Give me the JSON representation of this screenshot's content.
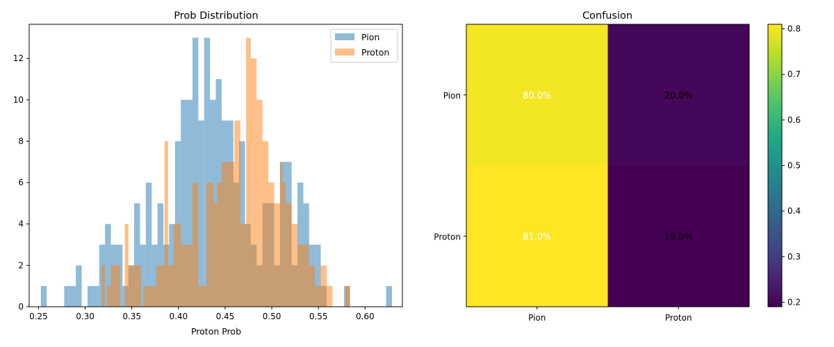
{
  "chart_data": [
    {
      "type": "bar",
      "subtype": "histogram",
      "title": "Prob Distribution",
      "xlabel": "Proton Prob",
      "ylabel": "",
      "xlim": [
        0.24,
        0.64
      ],
      "ylim": [
        0,
        13.65
      ],
      "xticks": [
        "0.25",
        "0.30",
        "0.35",
        "0.40",
        "0.45",
        "0.50",
        "0.55",
        "0.60"
      ],
      "yticks": [
        "0",
        "2",
        "4",
        "6",
        "8",
        "10",
        "12"
      ],
      "legend": {
        "placement": "upper-right"
      },
      "series": [
        {
          "name": "Pion",
          "color": "#1f77b4",
          "alpha": 0.5,
          "bins": [
            [
              0.2525,
              0.2588,
              1
            ],
            [
              0.2775,
              0.2838,
              1
            ],
            [
              0.2838,
              0.29,
              1
            ],
            [
              0.29,
              0.2963,
              2
            ],
            [
              0.2963,
              0.3025,
              0
            ],
            [
              0.3025,
              0.3088,
              1
            ],
            [
              0.3088,
              0.315,
              1
            ],
            [
              0.315,
              0.3213,
              3
            ],
            [
              0.3213,
              0.3275,
              4
            ],
            [
              0.3275,
              0.3338,
              3
            ],
            [
              0.3338,
              0.34,
              3
            ],
            [
              0.34,
              0.3463,
              1
            ],
            [
              0.3463,
              0.3525,
              2
            ],
            [
              0.3525,
              0.3588,
              5
            ],
            [
              0.3588,
              0.365,
              3
            ],
            [
              0.365,
              0.3713,
              6
            ],
            [
              0.3713,
              0.3775,
              3
            ],
            [
              0.3775,
              0.3838,
              5
            ],
            [
              0.3838,
              0.39,
              3
            ],
            [
              0.39,
              0.3963,
              4
            ],
            [
              0.3963,
              0.4025,
              8
            ],
            [
              0.4025,
              0.4088,
              10
            ],
            [
              0.4088,
              0.415,
              10
            ],
            [
              0.415,
              0.4213,
              13
            ],
            [
              0.4213,
              0.4275,
              9
            ],
            [
              0.4275,
              0.4338,
              13
            ],
            [
              0.4338,
              0.44,
              10
            ],
            [
              0.44,
              0.4463,
              11
            ],
            [
              0.4463,
              0.4525,
              9
            ],
            [
              0.4525,
              0.4588,
              9
            ],
            [
              0.4588,
              0.465,
              6
            ],
            [
              0.465,
              0.4713,
              8
            ],
            [
              0.4713,
              0.4775,
              4
            ],
            [
              0.4775,
              0.4838,
              3
            ],
            [
              0.4838,
              0.49,
              2
            ],
            [
              0.49,
              0.4963,
              5
            ],
            [
              0.4963,
              0.5025,
              5
            ],
            [
              0.5025,
              0.5088,
              2
            ],
            [
              0.5088,
              0.515,
              7
            ],
            [
              0.515,
              0.5213,
              7
            ],
            [
              0.5213,
              0.5275,
              2
            ],
            [
              0.5275,
              0.5338,
              6
            ],
            [
              0.5338,
              0.54,
              5
            ],
            [
              0.54,
              0.5463,
              3
            ],
            [
              0.5463,
              0.5525,
              3
            ],
            [
              0.5525,
              0.5588,
              1
            ],
            [
              0.5775,
              0.5838,
              1
            ],
            [
              0.6225,
              0.6288,
              1
            ]
          ]
        },
        {
          "name": "Proton",
          "color": "#ff7f0e",
          "alpha": 0.5,
          "bins": [
            [
              0.3175,
              0.3213,
              2
            ],
            [
              0.3238,
              0.3275,
              1
            ],
            [
              0.3275,
              0.3313,
              2
            ],
            [
              0.3313,
              0.3375,
              2
            ],
            [
              0.3425,
              0.3463,
              4
            ],
            [
              0.3463,
              0.3513,
              2
            ],
            [
              0.3513,
              0.36,
              2
            ],
            [
              0.3625,
              0.3688,
              1
            ],
            [
              0.3688,
              0.3763,
              1
            ],
            [
              0.3763,
              0.385,
              2
            ],
            [
              0.385,
              0.3888,
              8
            ],
            [
              0.3888,
              0.395,
              2
            ],
            [
              0.395,
              0.4025,
              4
            ],
            [
              0.4025,
              0.415,
              3
            ],
            [
              0.415,
              0.4213,
              6
            ],
            [
              0.4213,
              0.43,
              1
            ],
            [
              0.43,
              0.4375,
              6
            ],
            [
              0.4375,
              0.4413,
              5
            ],
            [
              0.4413,
              0.4463,
              6
            ],
            [
              0.4463,
              0.46,
              7
            ],
            [
              0.46,
              0.4663,
              9
            ],
            [
              0.4663,
              0.4725,
              4
            ],
            [
              0.4725,
              0.4775,
              13
            ],
            [
              0.4775,
              0.4838,
              12
            ],
            [
              0.4838,
              0.49,
              10
            ],
            [
              0.49,
              0.4963,
              8
            ],
            [
              0.4963,
              0.5025,
              6
            ],
            [
              0.5025,
              0.5088,
              5
            ],
            [
              0.5088,
              0.5113,
              7
            ],
            [
              0.5113,
              0.515,
              6
            ],
            [
              0.515,
              0.5213,
              5
            ],
            [
              0.5213,
              0.5275,
              4
            ],
            [
              0.5275,
              0.5338,
              3
            ],
            [
              0.5338,
              0.54,
              3
            ],
            [
              0.54,
              0.5463,
              2
            ],
            [
              0.5463,
              0.5525,
              1
            ],
            [
              0.5525,
              0.5588,
              2
            ],
            [
              0.5588,
              0.565,
              1
            ],
            [
              0.5788,
              0.5838,
              1
            ]
          ]
        }
      ]
    },
    {
      "type": "heatmap",
      "title": "Confusion",
      "xlabel": "",
      "ylabel": "",
      "xticks": [
        "Pion",
        "Proton"
      ],
      "yticks": [
        "Pion",
        "Proton"
      ],
      "values": [
        [
          0.8,
          0.2
        ],
        [
          0.81,
          0.19
        ]
      ],
      "cell_labels": [
        [
          "80.0%",
          "20.0%"
        ],
        [
          "81.0%",
          "19.0%"
        ]
      ],
      "cell_label_colors": [
        [
          "#ffffff",
          "#000000"
        ],
        [
          "#ffffff",
          "#000000"
        ]
      ],
      "colormap": "viridis",
      "colorbar": {
        "range": [
          0.19,
          0.81
        ],
        "ticks": [
          "0.2",
          "0.3",
          "0.4",
          "0.5",
          "0.6",
          "0.7",
          "0.8"
        ]
      }
    }
  ]
}
